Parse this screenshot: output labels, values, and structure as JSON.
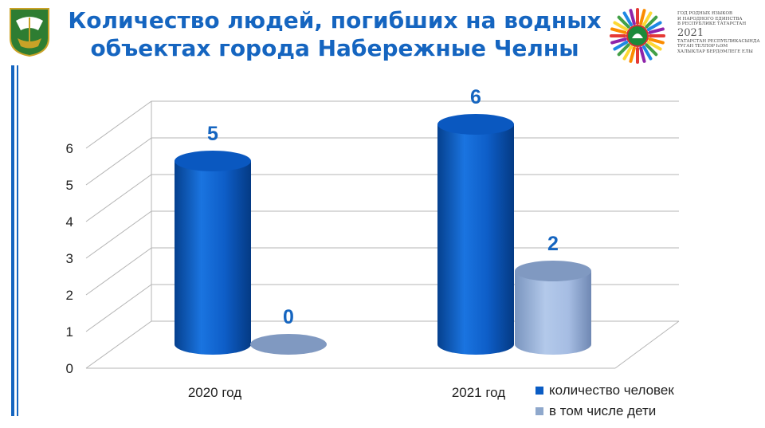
{
  "header": {
    "title_line1": "Количество людей, погибших на водных",
    "title_line2": "объектах города Набережные Челны"
  },
  "logo": {
    "lines": [
      "ГОД РОДНЫХ ЯЗЫКОВ",
      "И НАРОДНОГО ЕДИНСТВА",
      "В РЕСПУБЛИКЕ ТАТАРСТАН"
    ],
    "year": "2021",
    "lines_tt": [
      "ТАТАРСТАН РЕСПУБЛИКАСЫНДА",
      "ТУГАН ТЕЛЛӘР ҺӘМ",
      "ХАЛЫКЛАР БЕРДӘМЛЕГЕ ЕЛЫ"
    ]
  },
  "colors": {
    "title": "#1565c0",
    "series1": "#0a5cc4",
    "series2": "#8fa8cc",
    "label_blue": "#1565c0"
  },
  "chart_data": {
    "type": "bar",
    "categories": [
      "2020 год",
      "2021 год"
    ],
    "series": [
      {
        "name": "количество человек",
        "values": [
          5,
          6
        ]
      },
      {
        "name": "в том числе дети",
        "values": [
          0,
          2
        ]
      }
    ],
    "ylim": [
      0,
      6
    ],
    "yticks": [
      "0",
      "1",
      "2",
      "3",
      "4",
      "5",
      "6"
    ],
    "data_labels": [
      [
        "5",
        "0"
      ],
      [
        "6",
        "2"
      ]
    ],
    "legend_position": "bottom-right",
    "grid": true
  }
}
